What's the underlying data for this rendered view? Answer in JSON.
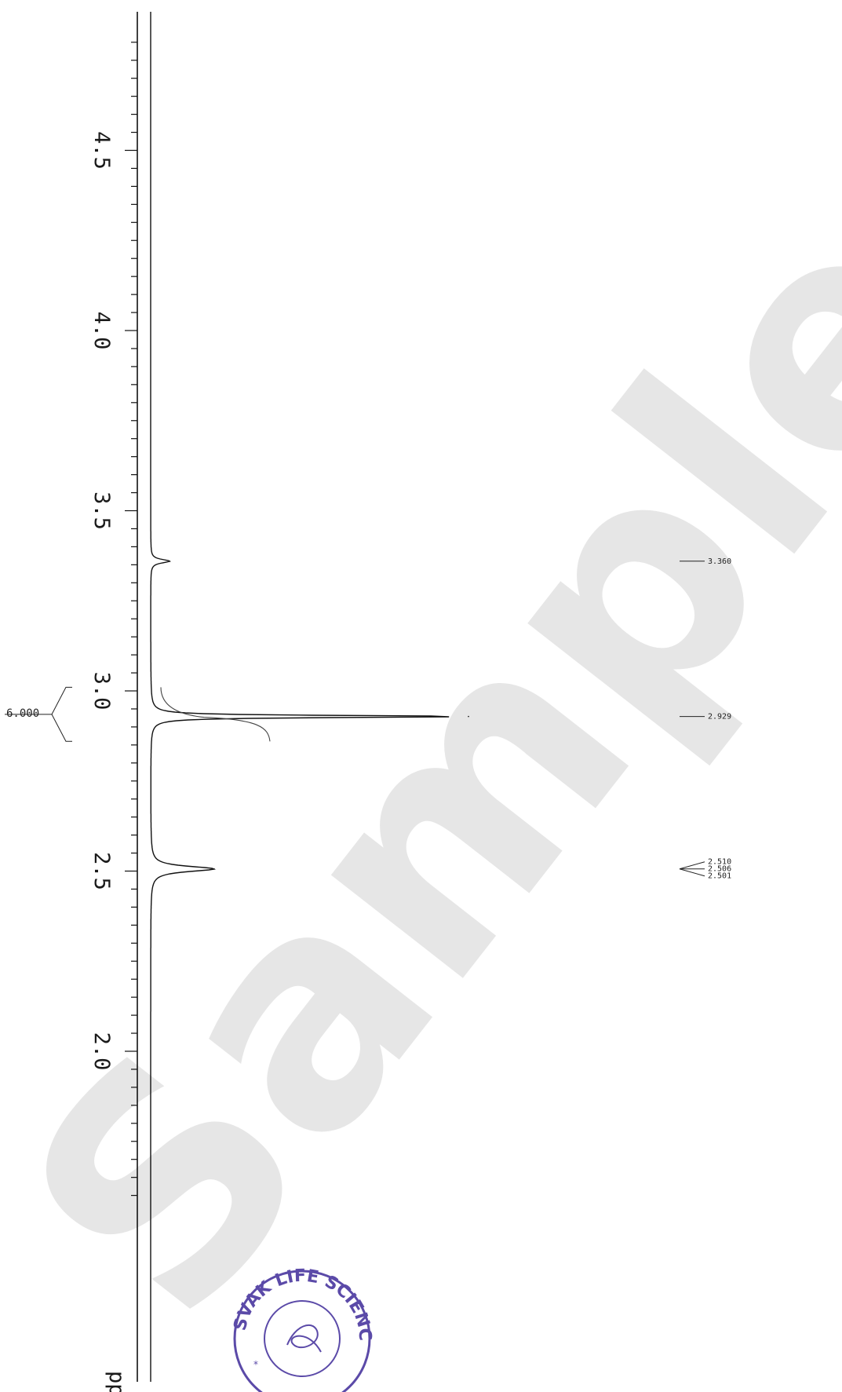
{
  "chart_data": {
    "type": "line",
    "x_unit": "ppm",
    "xlim": [
      4.8,
      1.6
    ],
    "x_ticks": [
      "4.5",
      "4.0",
      "3.5",
      "3.0",
      "2.5",
      "2.0"
    ],
    "peaks": [
      {
        "ppm": 3.36,
        "label": "3.360",
        "intensity": 0.06
      },
      {
        "ppm": 2.929,
        "label": "2.929",
        "intensity": 1.0
      },
      {
        "ppm": 2.506,
        "label": "2.510\n2.506\n2.501",
        "labels": [
          "2.510",
          "2.506",
          "2.501"
        ],
        "intensity": 0.2
      }
    ],
    "integrals": [
      {
        "from": 3.01,
        "to": 2.86,
        "value": "6.000"
      }
    ],
    "grid": false
  },
  "watermark": {
    "text": "Sample Copy",
    "color": "#d3d3d3"
  },
  "stamp": {
    "text": "SVAK LIFE SCIENCES",
    "color": "#5b4aa8"
  },
  "colors": {
    "trace": "#111111",
    "text": "#1a1a1a"
  }
}
